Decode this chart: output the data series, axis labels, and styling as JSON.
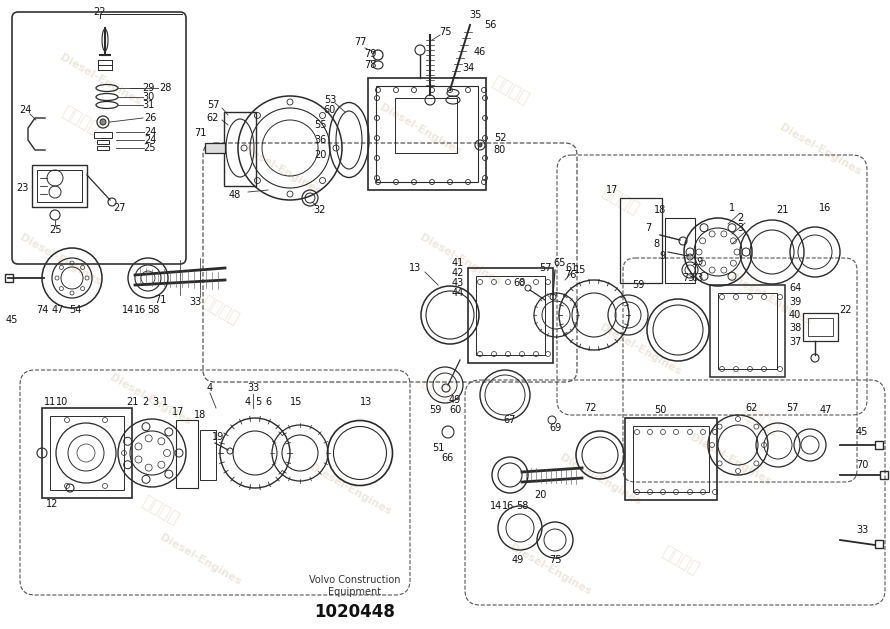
{
  "background_color": "#ffffff",
  "watermark_text": "Diesel-Engines",
  "part_number": "1020448",
  "company_line1": "Volvo Construction",
  "company_line2": "Equipment",
  "line_color": "#2a2a2a",
  "line_width": 0.9,
  "label_fontsize": 7.0,
  "label_color": "#111111"
}
